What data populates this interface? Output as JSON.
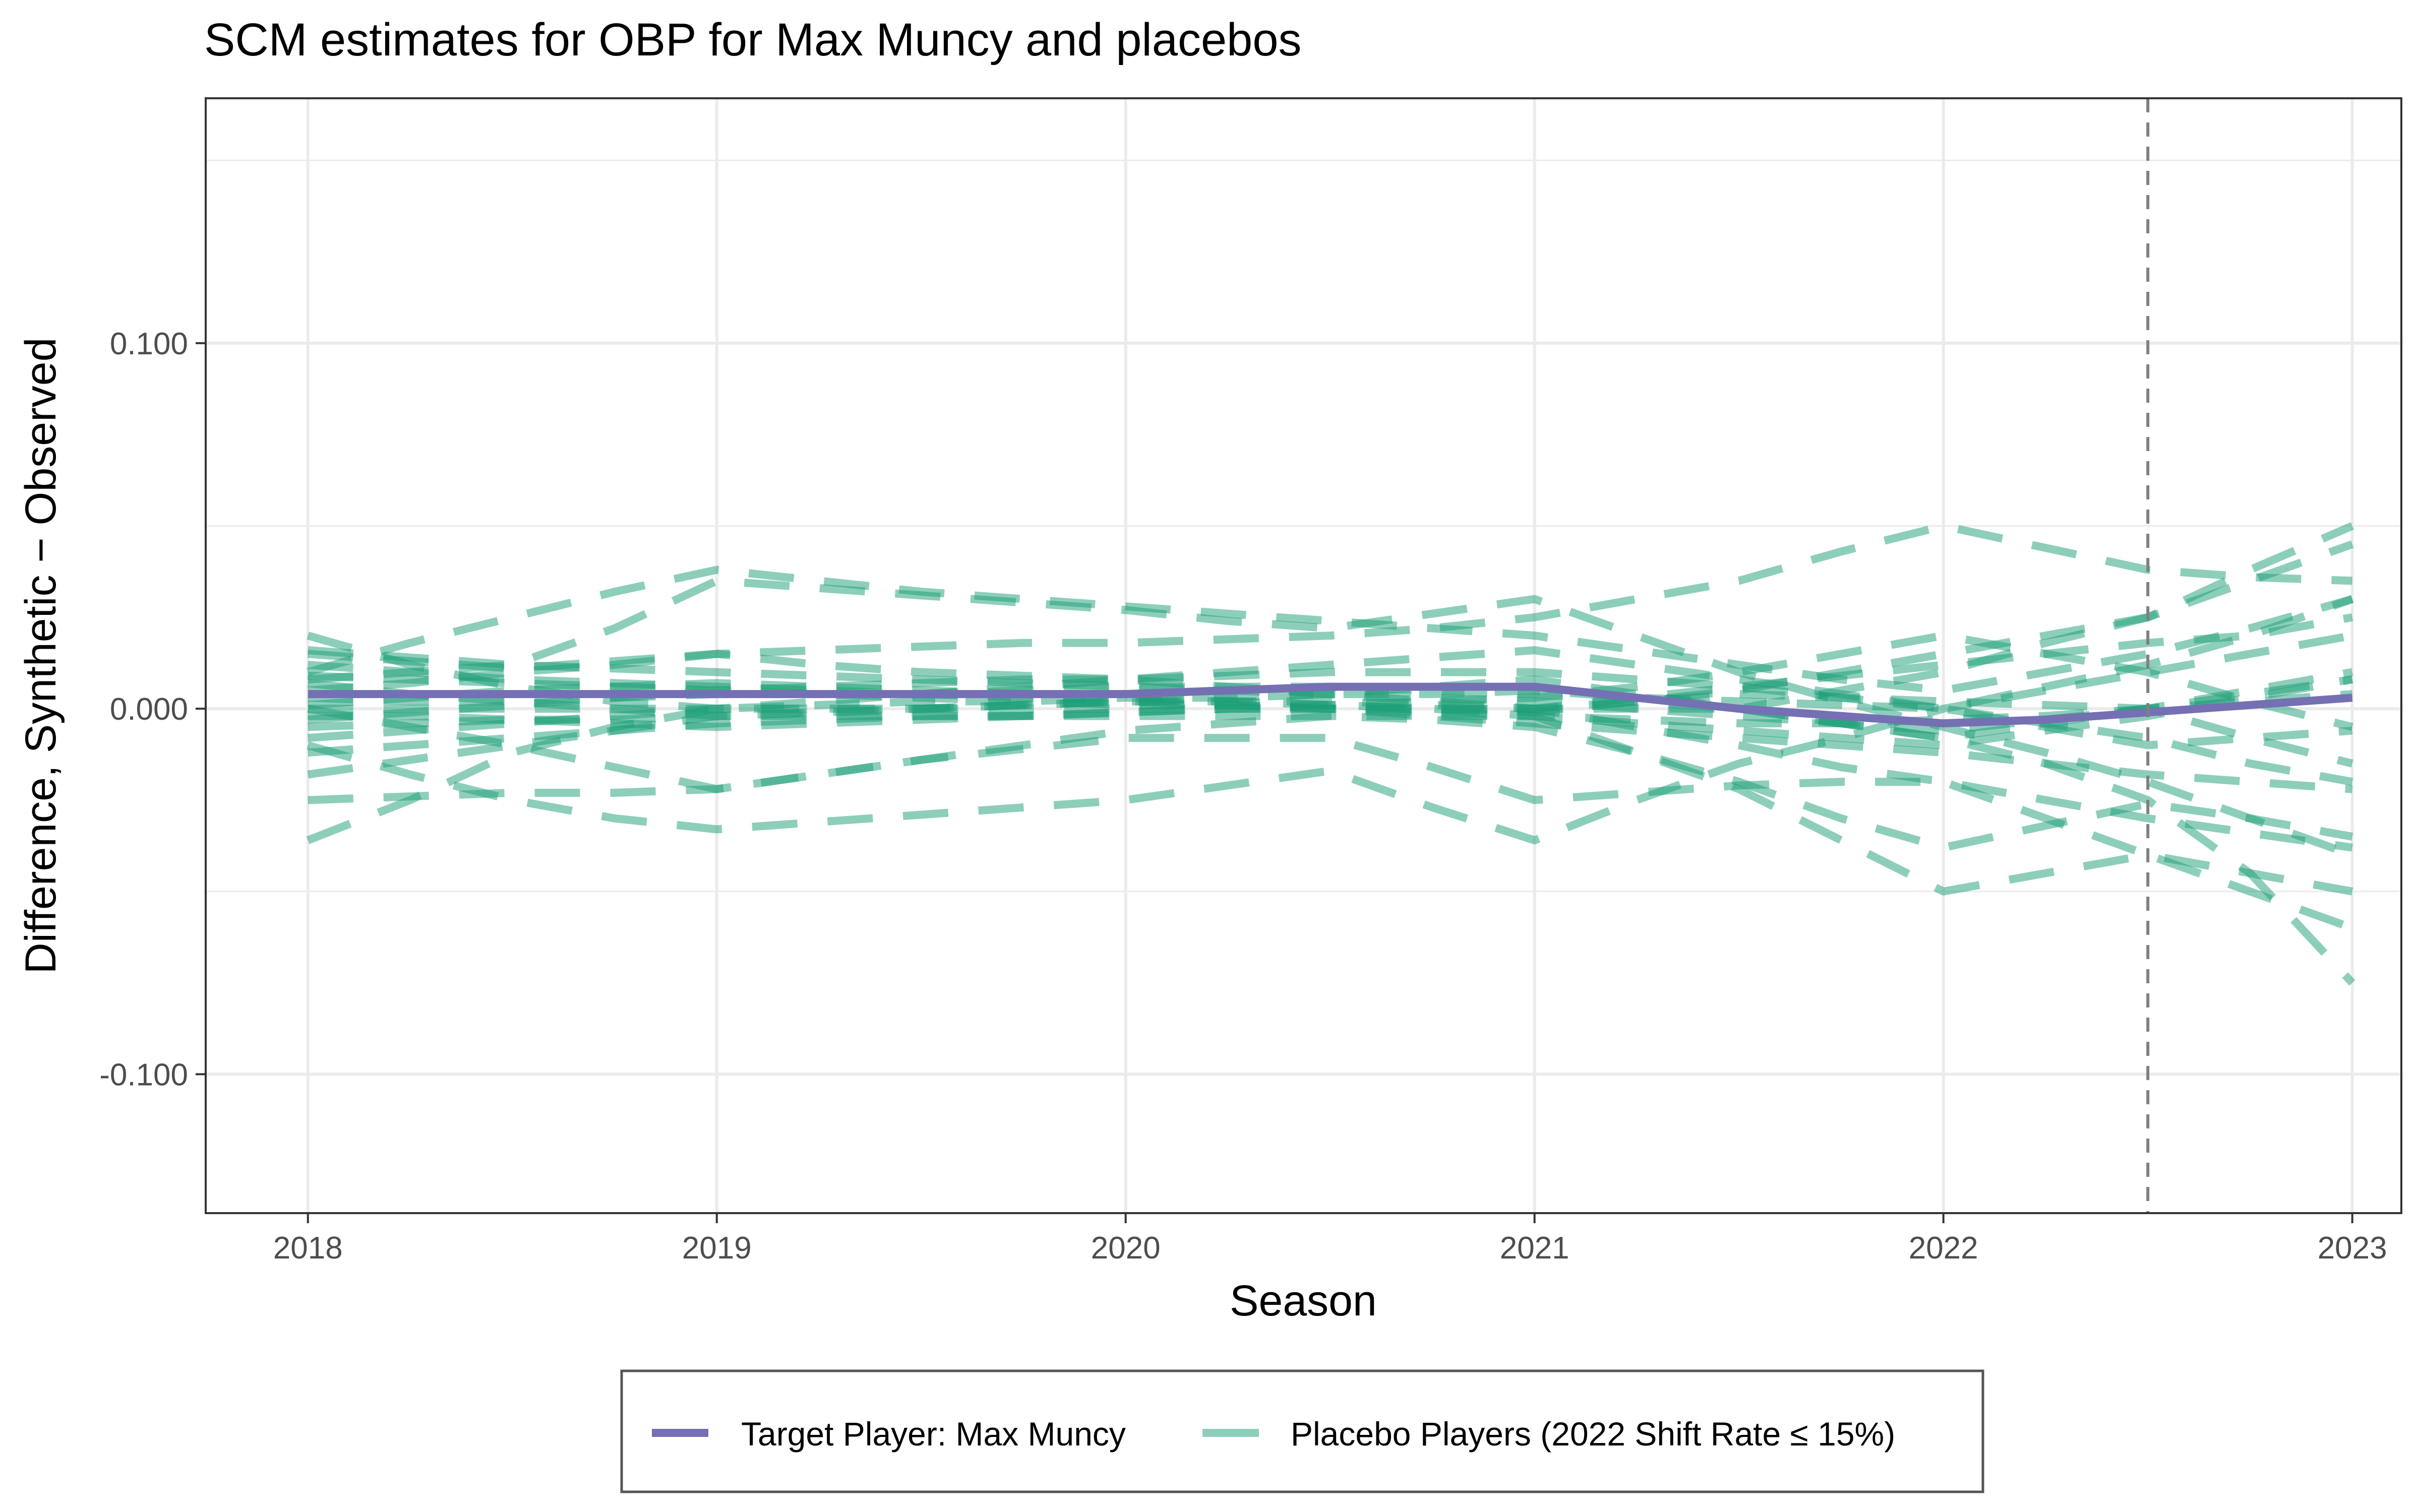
{
  "chart_data": {
    "type": "line",
    "title": "SCM estimates for OBP for Max Muncy and placebos",
    "xlabel": "Season",
    "ylabel": "Difference, Synthetic − Observed",
    "xlim": [
      2017.75,
      2023.12
    ],
    "ylim": [
      -0.138,
      0.167
    ],
    "x_ticks": [
      2018,
      2019,
      2020,
      2021,
      2022,
      2023
    ],
    "x_tick_labels": [
      "2018",
      "2019",
      "2020",
      "2021",
      "2022",
      "2023"
    ],
    "y_ticks": [
      -0.1,
      0.0,
      0.1
    ],
    "y_tick_labels": [
      "-0.100",
      "0.000",
      "0.100"
    ],
    "y_minor_ticks": [
      -0.05,
      0.05,
      0.15
    ],
    "grid": true,
    "vline": 2022.5,
    "legend_position": "bottom",
    "legend": [
      {
        "label": "Target Player: Max Muncy",
        "color": "#7570B3",
        "style": "solid"
      },
      {
        "label": "Placebo Players (2022 Shift Rate ≤ 15%)",
        "color": "#1B9E77",
        "style": "dashed"
      }
    ],
    "x": [
      2018.0,
      2018.25,
      2018.5,
      2018.75,
      2019.0,
      2019.25,
      2019.5,
      2019.75,
      2020.0,
      2020.25,
      2020.5,
      2020.75,
      2021.0,
      2021.25,
      2021.5,
      2021.75,
      2022.0,
      2022.25,
      2022.5,
      2022.75,
      2023.0
    ],
    "target": {
      "name": "Target Player: Max Muncy",
      "values": [
        0.004,
        0.004,
        0.004,
        0.004,
        0.004,
        0.004,
        0.004,
        0.004,
        0.004,
        0.005,
        0.006,
        0.006,
        0.006,
        0.003,
        0.0,
        -0.002,
        -0.004,
        -0.003,
        -0.001,
        0.001,
        0.003
      ]
    },
    "placebos": [
      {
        "values": [
          0.02,
          0.012,
          0.006,
          0.002,
          0.0,
          0.0,
          0.0,
          0.001,
          0.002,
          0.002,
          0.001,
          0.0,
          -0.002,
          -0.003,
          -0.004,
          -0.004,
          -0.003,
          -0.002,
          0.0,
          0.002,
          0.004
        ]
      },
      {
        "values": [
          -0.036,
          -0.025,
          -0.012,
          -0.005,
          0.0,
          0.001,
          0.002,
          0.002,
          0.003,
          0.003,
          0.004,
          0.004,
          0.005,
          0.003,
          0.002,
          0.001,
          0.0,
          -0.004,
          -0.008,
          -0.015,
          -0.02
        ]
      },
      {
        "values": [
          0.015,
          0.013,
          0.011,
          0.013,
          0.015,
          0.012,
          0.01,
          0.009,
          0.008,
          0.006,
          0.004,
          0.002,
          0.0,
          -0.005,
          -0.01,
          -0.016,
          -0.02,
          -0.025,
          -0.03,
          -0.034,
          -0.038
        ]
      },
      {
        "values": [
          -0.025,
          -0.024,
          -0.023,
          -0.023,
          -0.022,
          -0.018,
          -0.014,
          -0.01,
          -0.006,
          -0.004,
          -0.002,
          -0.003,
          -0.005,
          -0.012,
          -0.02,
          -0.03,
          -0.038,
          -0.032,
          -0.026,
          -0.03,
          -0.035
        ]
      },
      {
        "values": [
          0.01,
          0.018,
          0.025,
          0.032,
          0.038,
          0.035,
          0.032,
          0.03,
          0.028,
          0.026,
          0.024,
          0.022,
          0.02,
          0.016,
          0.012,
          0.008,
          0.005,
          0.01,
          0.015,
          0.022,
          0.03
        ]
      },
      {
        "values": [
          0.008,
          0.01,
          0.012,
          0.022,
          0.035,
          0.033,
          0.031,
          0.029,
          0.027,
          0.024,
          0.022,
          0.026,
          0.03,
          0.02,
          0.01,
          0.002,
          -0.005,
          -0.012,
          -0.02,
          -0.03,
          -0.04
        ]
      },
      {
        "values": [
          -0.01,
          -0.018,
          -0.025,
          -0.03,
          -0.033,
          -0.031,
          -0.029,
          -0.027,
          -0.025,
          -0.021,
          -0.017,
          -0.027,
          -0.036,
          -0.025,
          -0.015,
          -0.008,
          0.0,
          0.005,
          0.01,
          0.015,
          0.02
        ]
      },
      {
        "values": [
          0.0,
          -0.005,
          -0.01,
          -0.016,
          -0.022,
          -0.018,
          -0.014,
          -0.011,
          -0.008,
          -0.008,
          -0.008,
          -0.016,
          -0.025,
          -0.023,
          -0.021,
          -0.02,
          -0.02,
          -0.03,
          -0.04,
          -0.045,
          -0.05
        ]
      },
      {
        "values": [
          0.005,
          0.007,
          0.01,
          0.012,
          0.015,
          0.016,
          0.017,
          0.018,
          0.018,
          0.019,
          0.02,
          0.022,
          0.025,
          0.03,
          0.035,
          0.043,
          0.05,
          0.044,
          0.038,
          0.036,
          0.035
        ]
      },
      {
        "values": [
          0.0,
          0.0,
          0.0,
          0.0,
          0.0,
          0.0,
          0.0,
          0.0,
          0.0,
          0.0,
          0.0,
          0.0,
          0.0,
          0.0,
          0.0,
          0.005,
          0.01,
          0.018,
          0.025,
          0.038,
          0.05
        ]
      },
      {
        "values": [
          -0.005,
          -0.004,
          -0.003,
          -0.003,
          -0.002,
          -0.002,
          -0.002,
          -0.002,
          -0.002,
          -0.002,
          -0.002,
          -0.002,
          -0.002,
          -0.012,
          -0.022,
          -0.036,
          -0.05,
          -0.045,
          -0.04,
          -0.05,
          -0.06
        ]
      },
      {
        "values": [
          0.012,
          0.01,
          0.008,
          0.007,
          0.006,
          0.005,
          0.004,
          0.003,
          0.002,
          0.001,
          0.0,
          0.0,
          0.0,
          0.003,
          0.006,
          0.009,
          0.012,
          0.015,
          0.018,
          0.02,
          0.025
        ]
      },
      {
        "values": [
          -0.012,
          -0.01,
          -0.008,
          -0.006,
          -0.004,
          -0.003,
          -0.002,
          -0.002,
          -0.001,
          0.0,
          0.0,
          -0.002,
          -0.004,
          -0.006,
          -0.008,
          -0.01,
          -0.012,
          -0.015,
          -0.018,
          -0.02,
          -0.022
        ]
      },
      {
        "values": [
          0.003,
          0.002,
          0.002,
          0.003,
          0.004,
          0.004,
          0.004,
          0.005,
          0.006,
          0.006,
          0.006,
          0.005,
          0.004,
          0.002,
          0.0,
          -0.004,
          -0.008,
          -0.015,
          -0.025,
          -0.045,
          -0.075
        ]
      },
      {
        "values": [
          -0.003,
          -0.001,
          0.001,
          0.003,
          0.005,
          0.006,
          0.007,
          0.008,
          0.008,
          0.009,
          0.01,
          0.01,
          0.01,
          0.008,
          0.006,
          0.003,
          0.0,
          0.006,
          0.012,
          0.02,
          0.03
        ]
      },
      {
        "values": [
          0.007,
          0.004,
          0.002,
          0.0,
          -0.002,
          -0.001,
          0.0,
          0.001,
          0.002,
          0.003,
          0.004,
          0.006,
          0.008,
          0.004,
          0.0,
          -0.004,
          -0.008,
          -0.004,
          0.0,
          0.004,
          0.008
        ]
      },
      {
        "values": [
          -0.008,
          -0.006,
          -0.004,
          -0.002,
          0.0,
          0.002,
          0.004,
          0.006,
          0.008,
          0.01,
          0.012,
          0.014,
          0.016,
          0.012,
          0.008,
          0.004,
          0.0,
          -0.005,
          -0.01,
          -0.008,
          -0.006
        ]
      },
      {
        "values": [
          0.001,
          0.003,
          0.005,
          0.006,
          0.007,
          0.006,
          0.005,
          0.004,
          0.003,
          0.002,
          0.001,
          0.0,
          -0.001,
          0.002,
          0.005,
          0.01,
          0.015,
          0.02,
          0.025,
          0.035,
          0.045
        ]
      },
      {
        "values": [
          -0.018,
          -0.014,
          -0.01,
          -0.006,
          -0.002,
          -0.001,
          0.0,
          0.001,
          0.002,
          0.002,
          0.002,
          0.001,
          0.0,
          0.002,
          0.004,
          0.003,
          0.002,
          0.001,
          0.0,
          -0.008,
          -0.015
        ]
      },
      {
        "values": [
          0.016,
          0.014,
          0.012,
          0.011,
          0.01,
          0.009,
          0.008,
          0.007,
          0.006,
          0.005,
          0.004,
          0.003,
          0.002,
          0.0,
          -0.002,
          -0.004,
          -0.006,
          -0.003,
          0.0,
          0.005,
          0.01
        ]
      },
      {
        "values": [
          -0.002,
          -0.002,
          -0.003,
          -0.004,
          -0.005,
          -0.004,
          -0.003,
          -0.002,
          -0.001,
          0.0,
          0.001,
          0.002,
          0.003,
          0.006,
          0.01,
          0.015,
          0.02,
          0.015,
          0.01,
          0.002,
          -0.005
        ]
      },
      {
        "values": [
          0.009,
          0.008,
          0.007,
          0.006,
          0.005,
          0.004,
          0.003,
          0.002,
          0.001,
          0.001,
          0.0,
          -0.001,
          -0.002,
          -0.004,
          -0.006,
          -0.008,
          -0.01,
          -0.006,
          -0.002,
          0.003,
          0.008
        ]
      }
    ]
  }
}
